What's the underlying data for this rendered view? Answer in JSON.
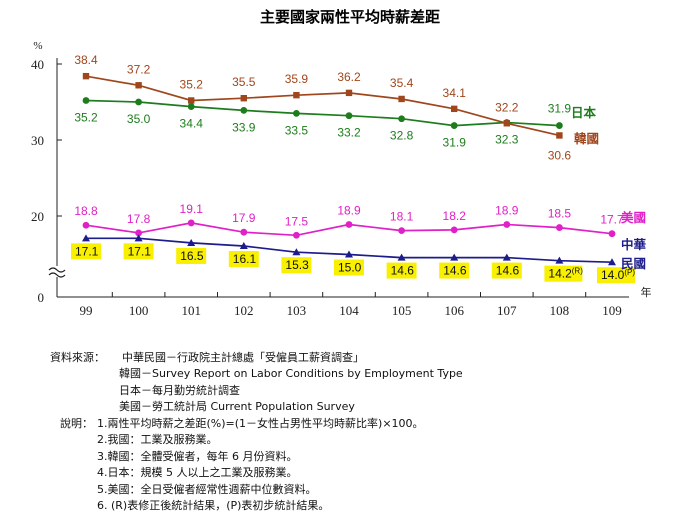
{
  "chart_data": {
    "type": "line",
    "title": "主要國家兩性平均時薪差距",
    "ylabel": "%",
    "xlabel": "年",
    "ylim": [
      0,
      40
    ],
    "y_ticks": [
      "0",
      "20",
      "30",
      "40"
    ],
    "axis_break": true,
    "categories": [
      "99",
      "100",
      "101",
      "102",
      "103",
      "104",
      "105",
      "106",
      "107",
      "108",
      "109"
    ],
    "legend_placement": "right",
    "grid": false,
    "series": [
      {
        "name": "日本",
        "color": "#1d7d1d",
        "marker": "circle",
        "values": [
          35.2,
          35.0,
          34.4,
          33.9,
          33.5,
          33.2,
          32.8,
          31.9,
          32.3,
          31.9,
          null
        ],
        "labels": [
          "35.2",
          "35.0",
          "34.4",
          "33.9",
          "33.5",
          "33.2",
          "32.8",
          "31.9",
          "32.3",
          "31.9",
          ""
        ]
      },
      {
        "name": "韓國",
        "color": "#a0461c",
        "marker": "square",
        "values": [
          38.4,
          37.2,
          35.2,
          35.5,
          35.9,
          36.2,
          35.4,
          34.1,
          32.2,
          30.6,
          null
        ],
        "labels": [
          "38.4",
          "37.2",
          "35.2",
          "35.5",
          "35.9",
          "36.2",
          "35.4",
          "34.1",
          "32.2",
          "30.6",
          ""
        ]
      },
      {
        "name": "美國",
        "color": "#e020c8",
        "marker": "circle",
        "values": [
          18.8,
          17.8,
          19.1,
          17.9,
          17.5,
          18.9,
          18.1,
          18.2,
          18.9,
          18.5,
          17.7
        ],
        "labels": [
          "18.8",
          "17.8",
          "19.1",
          "17.9",
          "17.5",
          "18.9",
          "18.1",
          "18.2",
          "18.9",
          "18.5",
          "17.7"
        ]
      },
      {
        "name": "中華民國",
        "color": "#1c1c8c",
        "marker": "triangle",
        "highlight": "#f8f000",
        "values": [
          17.1,
          17.1,
          16.5,
          16.1,
          15.3,
          15.0,
          14.6,
          14.6,
          14.6,
          14.2,
          14.0
        ],
        "labels": [
          "17.1",
          "17.1",
          "16.5",
          "16.1",
          "15.3",
          "15.0",
          "14.6",
          "14.6",
          "14.6",
          "14.2",
          "14.0"
        ],
        "label_marks": [
          "",
          "",
          "",
          "",
          "",
          "",
          "",
          "",
          "",
          "(R)",
          "(P)"
        ]
      }
    ]
  },
  "notes": {
    "source_title": "資料來源：",
    "sources": [
      "中華民國－行政院主計總處「受僱員工薪資調查」",
      "韓國－Survey Report on Labor Conditions by Employment Type",
      "日本－每月勤労統計調查",
      "美國－勞工統計局  Current Population Survey"
    ],
    "explain_title": "說明：",
    "items": [
      "1.兩性平均時薪之差距(%)=(1－女性占男性平均時薪比率)×100。",
      "2.我國：工業及服務業。",
      "3.韓國：全體受僱者，每年 6 月份資料。",
      "4.日本：規模 5 人以上之工業及服務業。",
      "5.美國：全日受僱者經常性週薪中位數資料。",
      "6. (R)表修正後統計結果，(P)表初步統計結果。"
    ]
  }
}
